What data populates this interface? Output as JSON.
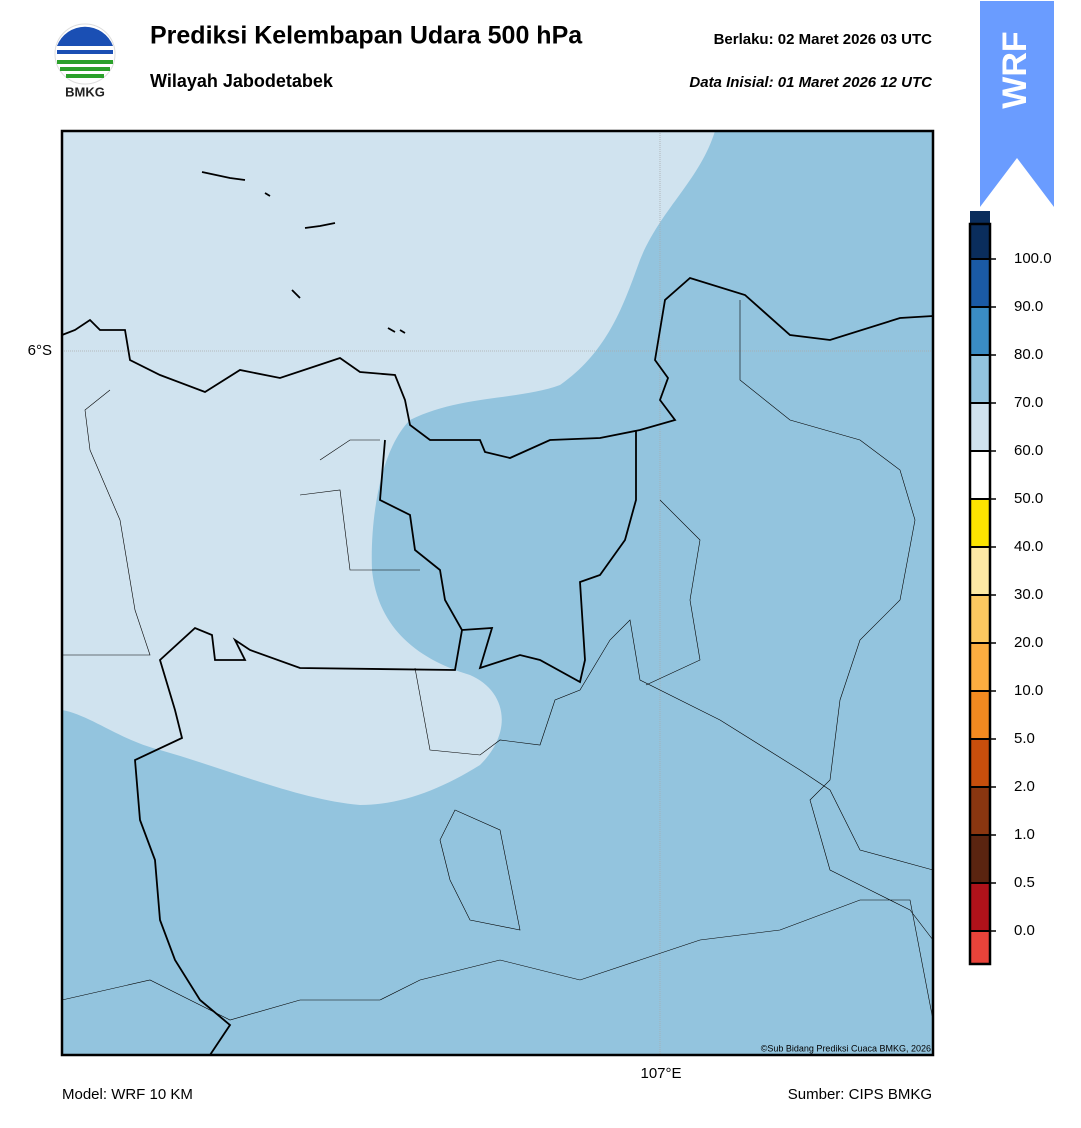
{
  "header": {
    "title": "Prediksi Kelembapan Udara 500 hPa",
    "subtitle": "Wilayah Jabodetabek",
    "valid": "Berlaku:  02 Maret 2026 03 UTC",
    "initial": "Data Inisial:  01 Maret 2026 12 UTC",
    "logo_text": "BMKG"
  },
  "badge": "WRF",
  "map": {
    "lat_label": "6°S",
    "lon_label": "107°E",
    "copyright": "©Sub Bidang Prediksi Cuaca BMKG, 2026"
  },
  "colorbar": {
    "ticks": [
      {
        "value": 0,
        "label": "0.0"
      },
      {
        "value": 0.5,
        "label": "0.5"
      },
      {
        "value": 1,
        "label": "1.0"
      },
      {
        "value": 2,
        "label": "2.0"
      },
      {
        "value": 5,
        "label": "5.0"
      },
      {
        "value": 10,
        "label": "10.0"
      },
      {
        "value": 20,
        "label": "20.0"
      },
      {
        "value": 30,
        "label": "30.0"
      },
      {
        "value": 40,
        "label": "40.0"
      },
      {
        "value": 50,
        "label": "50.0"
      },
      {
        "value": 60,
        "label": "60.0"
      },
      {
        "value": 70,
        "label": "70.0"
      },
      {
        "value": 80,
        "label": "80.0"
      },
      {
        "value": 90,
        "label": "90.0"
      },
      {
        "value": 100,
        "label": "100.0"
      }
    ],
    "colors": [
      "#e8433a",
      "#b0121a",
      "#5a2410",
      "#8a3610",
      "#c84e0c",
      "#f28a20",
      "#fbad40",
      "#fcc860",
      "#fde8a4",
      "#fde400",
      "#ffffff",
      "#d0e3ef",
      "#93c4de",
      "#3a8cc4",
      "#1a5aa6",
      "#0a2d5c",
      "#2a0c4c"
    ]
  },
  "footer": {
    "model": "Model: WRF 10 KM",
    "source": "Sumber: CIPS BMKG"
  }
}
